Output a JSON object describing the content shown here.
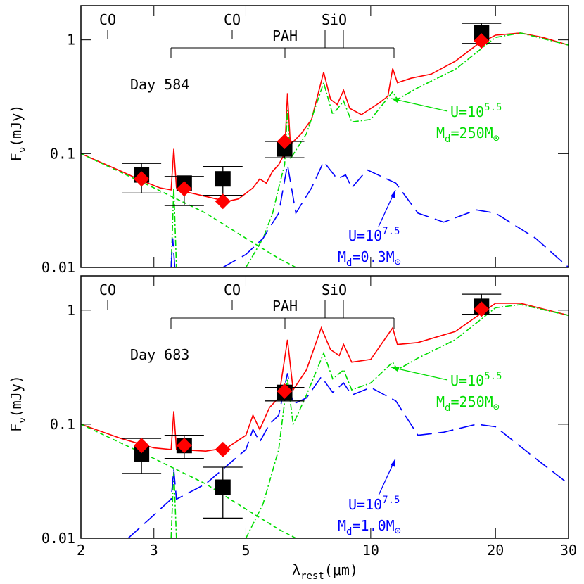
{
  "chart_data": [
    {
      "type": "line",
      "log_x": true,
      "log_y": true,
      "xlim": [
        2,
        30
      ],
      "ylim": [
        0.01,
        2
      ],
      "xticks": [
        2,
        3,
        5,
        10,
        20,
        30
      ],
      "yticks": [
        0.01,
        0.1,
        1
      ],
      "y_label": {
        "base": "F",
        "sub": "ν",
        "rest": "(mJy)"
      },
      "day": "Day 584",
      "co": [
        "CO",
        "CO"
      ],
      "pah": "PAH",
      "sio": "SiO",
      "u_green": {
        "base": "U=10",
        "sup": "5.5"
      },
      "m_green": {
        "base": "M",
        "sub": "d",
        "rest": "=250M",
        "sun": "⊙"
      },
      "u_blue": {
        "base": "U=10",
        "sup": "7.5"
      },
      "m_blue": {
        "base": "M",
        "sub": "d",
        "rest": "=0.3M",
        "sun": "⊙"
      },
      "series": [
        {
          "color": "#ff0000",
          "line_style": "solid",
          "x": [
            2,
            2.5,
            2.8,
            3.1,
            3.3,
            3.35,
            3.4,
            3.6,
            4,
            4.5,
            4.8,
            5.2,
            5.4,
            5.6,
            5.8,
            6,
            6.2,
            6.3,
            6.4,
            6.8,
            7.2,
            7.7,
            8,
            8.3,
            8.6,
            8.9,
            9.5,
            10.5,
            11,
            11.3,
            11.6,
            12.5,
            14,
            16,
            18,
            20,
            23,
            26,
            30
          ],
          "values": [
            0.1,
            0.07,
            0.058,
            0.05,
            0.048,
            0.11,
            0.05,
            0.046,
            0.042,
            0.038,
            0.04,
            0.05,
            0.06,
            0.055,
            0.07,
            0.08,
            0.1,
            0.34,
            0.12,
            0.15,
            0.2,
            0.52,
            0.3,
            0.27,
            0.36,
            0.25,
            0.22,
            0.28,
            0.32,
            0.56,
            0.42,
            0.46,
            0.5,
            0.65,
            0.9,
            1.1,
            1.15,
            1.05,
            0.9
          ]
        },
        {
          "color": "#00dd00",
          "line_style": "dashdot",
          "x": [
            3.3,
            3.35,
            3.4,
            null,
            5,
            5.5,
            5.8,
            6,
            6.2,
            6.3,
            6.4,
            7,
            7.7,
            8.1,
            8.6,
            9,
            10,
            11.3,
            11.6,
            13,
            16,
            20,
            23,
            30
          ],
          "values": [
            0.01,
            0.05,
            0.01,
            null,
            0.01,
            0.018,
            0.03,
            0.05,
            0.08,
            0.24,
            0.09,
            0.15,
            0.42,
            0.22,
            0.29,
            0.19,
            0.2,
            0.35,
            0.3,
            0.38,
            0.55,
            1.05,
            1.15,
            0.9
          ]
        },
        {
          "color": "#00dd00",
          "line_style": "dashed",
          "x": [
            2,
            3,
            4,
            5,
            6,
            6.6
          ],
          "values": [
            0.1,
            0.05,
            0.03,
            0.018,
            0.012,
            0.01
          ]
        },
        {
          "color": "#0000ff",
          "line_style": "longdash",
          "x": [
            3.3,
            3.33,
            3.37,
            null,
            4.4,
            5,
            5.5,
            6,
            6.3,
            6.6,
            7.2,
            7.7,
            8.3,
            8.7,
            9,
            9.8,
            11.5,
            13,
            15,
            18,
            20,
            25,
            30
          ],
          "values": [
            0.01,
            0.018,
            0.01,
            null,
            0.01,
            0.013,
            0.018,
            0.03,
            0.08,
            0.03,
            0.05,
            0.085,
            0.06,
            0.065,
            0.05,
            0.072,
            0.055,
            0.03,
            0.025,
            0.032,
            0.03,
            0.018,
            0.01
          ]
        }
      ],
      "observed": {
        "color": "#000000",
        "x": [
          2.8,
          3.55,
          4.4,
          6.2,
          18.5
        ],
        "values": [
          0.065,
          0.055,
          0.06,
          0.11,
          1.15
        ],
        "lower": [
          0.045,
          0.035,
          0.043,
          0.092,
          0.93
        ],
        "upper": [
          0.082,
          0.063,
          0.077,
          0.128,
          1.4
        ]
      },
      "model": {
        "color": "#ff0000",
        "x": [
          2.8,
          3.55,
          4.4,
          6.2,
          18.5
        ],
        "values": [
          0.06,
          0.049,
          0.038,
          0.128,
          0.98
        ]
      }
    },
    {
      "type": "line",
      "log_x": true,
      "log_y": true,
      "xlim": [
        2,
        30
      ],
      "ylim": [
        0.01,
        2
      ],
      "xticks": [
        2,
        3,
        5,
        10,
        20,
        30
      ],
      "yticks": [
        0.01,
        0.1,
        1
      ],
      "y_label": {
        "base": "F",
        "sub": "ν",
        "rest": "(mJy)"
      },
      "x_label": {
        "base": "λ",
        "sub": "rest",
        "rest": "(μm)"
      },
      "day": "Day 683",
      "co": [
        "CO",
        "CO"
      ],
      "pah": "PAH",
      "sio": "SiO",
      "u_green": {
        "base": "U=10",
        "sup": "5.5"
      },
      "m_green": {
        "base": "M",
        "sub": "d",
        "rest": "=250M",
        "sun": "⊙"
      },
      "u_blue": {
        "base": "U=10",
        "sup": "7.5"
      },
      "m_blue": {
        "base": "M",
        "sub": "d",
        "rest": "=1.0M",
        "sun": "⊙"
      },
      "series": [
        {
          "color": "#ff0000",
          "line_style": "solid",
          "x": [
            2,
            2.5,
            3,
            3.3,
            3.35,
            3.4,
            4,
            4.5,
            5,
            5.2,
            5.4,
            5.7,
            6,
            6.3,
            6.5,
            7,
            7.6,
            8,
            8.4,
            8.6,
            9,
            10,
            11.3,
            11.6,
            13,
            16,
            20,
            23,
            30
          ],
          "values": [
            0.1,
            0.075,
            0.062,
            0.06,
            0.13,
            0.06,
            0.058,
            0.062,
            0.08,
            0.12,
            0.09,
            0.14,
            0.17,
            0.55,
            0.2,
            0.3,
            0.7,
            0.45,
            0.4,
            0.5,
            0.35,
            0.37,
            0.7,
            0.5,
            0.52,
            0.65,
            1.15,
            1.15,
            0.9
          ]
        },
        {
          "color": "#00dd00",
          "line_style": "dashdot",
          "x": [
            3.3,
            3.35,
            3.4,
            null,
            5,
            5.5,
            6,
            6.3,
            6.5,
            7,
            7.7,
            8.1,
            8.6,
            9,
            10,
            11.3,
            11.6,
            13,
            16,
            20,
            23,
            30
          ],
          "values": [
            0.01,
            0.04,
            0.01,
            null,
            0.01,
            0.02,
            0.06,
            0.25,
            0.1,
            0.18,
            0.42,
            0.25,
            0.3,
            0.2,
            0.23,
            0.35,
            0.3,
            0.38,
            0.55,
            1.05,
            1.12,
            0.9
          ]
        },
        {
          "color": "#00dd00",
          "line_style": "dashed",
          "x": [
            2,
            3,
            4,
            5,
            6,
            6.6
          ],
          "values": [
            0.1,
            0.05,
            0.03,
            0.018,
            0.012,
            0.01
          ]
        },
        {
          "color": "#0000ff",
          "line_style": "longdash",
          "x": [
            2.6,
            3,
            3.3,
            3.35,
            3.4,
            4,
            5,
            5.2,
            5.4,
            5.7,
            6,
            6.3,
            6.5,
            7,
            7.6,
            8.1,
            8.6,
            9,
            10,
            11.5,
            13,
            15,
            18,
            20,
            25,
            30
          ],
          "values": [
            0.01,
            0.016,
            0.022,
            0.04,
            0.022,
            0.03,
            0.06,
            0.09,
            0.07,
            0.1,
            0.12,
            0.28,
            0.15,
            0.17,
            0.26,
            0.19,
            0.23,
            0.18,
            0.21,
            0.16,
            0.08,
            0.085,
            0.1,
            0.095,
            0.05,
            0.03
          ]
        }
      ],
      "observed": {
        "color": "#000000",
        "x": [
          2.8,
          3.55,
          4.4,
          6.2,
          18.5
        ],
        "values": [
          0.055,
          0.065,
          0.028,
          0.19,
          1.08
        ],
        "lower": [
          0.037,
          0.05,
          0.015,
          0.16,
          0.92
        ],
        "upper": [
          0.075,
          0.08,
          0.042,
          0.21,
          1.38
        ]
      },
      "model": {
        "color": "#ff0000",
        "x": [
          2.8,
          3.55,
          4.4,
          6.2,
          18.5
        ],
        "values": [
          0.065,
          0.065,
          0.06,
          0.195,
          1.02
        ]
      }
    }
  ]
}
